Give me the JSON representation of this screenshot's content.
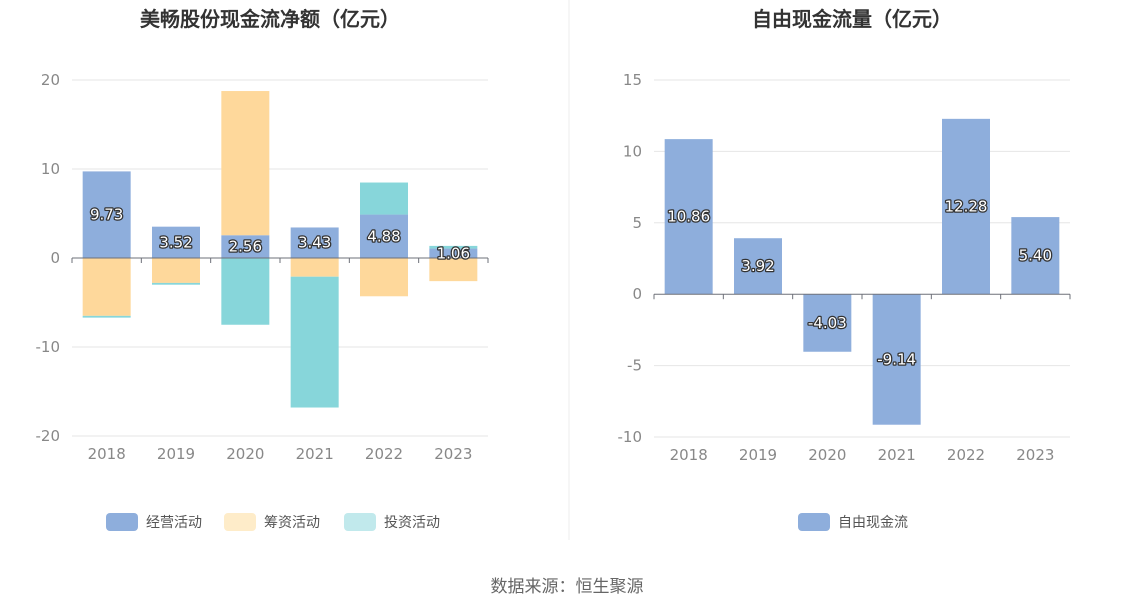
{
  "footer": "数据来源：恒生聚源",
  "chart_data": [
    {
      "type": "bar",
      "stacked": true,
      "title": "美畅股份现金流净额（亿元）",
      "categories": [
        "2018",
        "2019",
        "2020",
        "2021",
        "2022",
        "2023"
      ],
      "ylim": [
        -20,
        20
      ],
      "yticks": [
        20,
        10,
        0,
        -10,
        -20
      ],
      "grid": true,
      "legend_position": "bottom",
      "series": [
        {
          "name": "经营活动",
          "color": "#8eaedc",
          "values": [
            9.73,
            3.52,
            2.56,
            3.43,
            4.88,
            1.06
          ],
          "labels": [
            "9.73",
            "3.52",
            "2.56",
            "3.43",
            "4.88",
            "1.06"
          ]
        },
        {
          "name": "筹资活动",
          "color": "#fed89b",
          "values": [
            -6.5,
            -2.8,
            16.2,
            -2.1,
            -4.3,
            -2.6
          ]
        },
        {
          "name": "投资活动",
          "color": "#87d6da",
          "values": [
            -0.2,
            -0.2,
            -7.5,
            -14.7,
            3.6,
            0.3
          ]
        }
      ]
    },
    {
      "type": "bar",
      "title": "自由现金流量（亿元）",
      "categories": [
        "2018",
        "2019",
        "2020",
        "2021",
        "2022",
        "2023"
      ],
      "ylim": [
        -10,
        15
      ],
      "yticks": [
        15,
        10,
        5,
        0,
        -5,
        -10
      ],
      "grid": true,
      "legend_position": "bottom",
      "series": [
        {
          "name": "自由现金流",
          "color": "#8eaedc",
          "values": [
            10.86,
            3.92,
            -4.03,
            -9.14,
            12.28,
            5.4
          ],
          "labels": [
            "10.86",
            "3.92",
            "-4.03",
            "-9.14",
            "12.28",
            "5.40"
          ]
        }
      ]
    }
  ]
}
